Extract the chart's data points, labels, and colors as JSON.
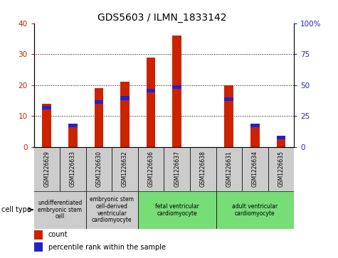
{
  "title": "GDS5603 / ILMN_1833142",
  "samples": [
    "GSM1226629",
    "GSM1226633",
    "GSM1226630",
    "GSM1226632",
    "GSM1226636",
    "GSM1226637",
    "GSM1226638",
    "GSM1226631",
    "GSM1226634",
    "GSM1226635"
  ],
  "counts": [
    14,
    7.5,
    19,
    21,
    29,
    36,
    0,
    20,
    7.5,
    2.5
  ],
  "percentiles_pct": [
    33,
    19,
    38,
    41,
    47,
    50,
    0,
    40,
    19,
    9
  ],
  "ylim_left": [
    0,
    40
  ],
  "ylim_right": [
    0,
    100
  ],
  "yticks_left": [
    0,
    10,
    20,
    30,
    40
  ],
  "yticks_right": [
    0,
    25,
    50,
    75,
    100
  ],
  "yticklabels_right": [
    "0",
    "25",
    "50",
    "75",
    "100%"
  ],
  "bar_color": "#cc0000",
  "percentile_color": "#3333cc",
  "background_color": "#ffffff",
  "bar_width": 0.35,
  "cell_types": [
    {
      "label": "undifferentiated\nembryonic stem\ncell",
      "start": 0,
      "end": 1,
      "color": "#cccccc"
    },
    {
      "label": "embryonic stem\ncell-derived\nventricular\ncardiomyocyte",
      "start": 2,
      "end": 3,
      "color": "#cccccc"
    },
    {
      "label": "fetal ventricular\ncardiomyocyte",
      "start": 4,
      "end": 6,
      "color": "#77dd77"
    },
    {
      "label": "adult ventricular\ncardiomyocyte",
      "start": 7,
      "end": 9,
      "color": "#77dd77"
    }
  ],
  "cell_type_label": "cell type",
  "legend_count_label": "count",
  "legend_percentile_label": "percentile rank within the sample",
  "bar_color_red": "#cc2200",
  "percentile_color_blue": "#2222cc",
  "ylabel_left_color": "#cc2200",
  "ylabel_right_color": "#2222cc",
  "title_fontsize": 10,
  "tick_fontsize": 7.5,
  "sample_fontsize": 5.5,
  "celltype_fontsize": 5.5,
  "legend_fontsize": 7
}
